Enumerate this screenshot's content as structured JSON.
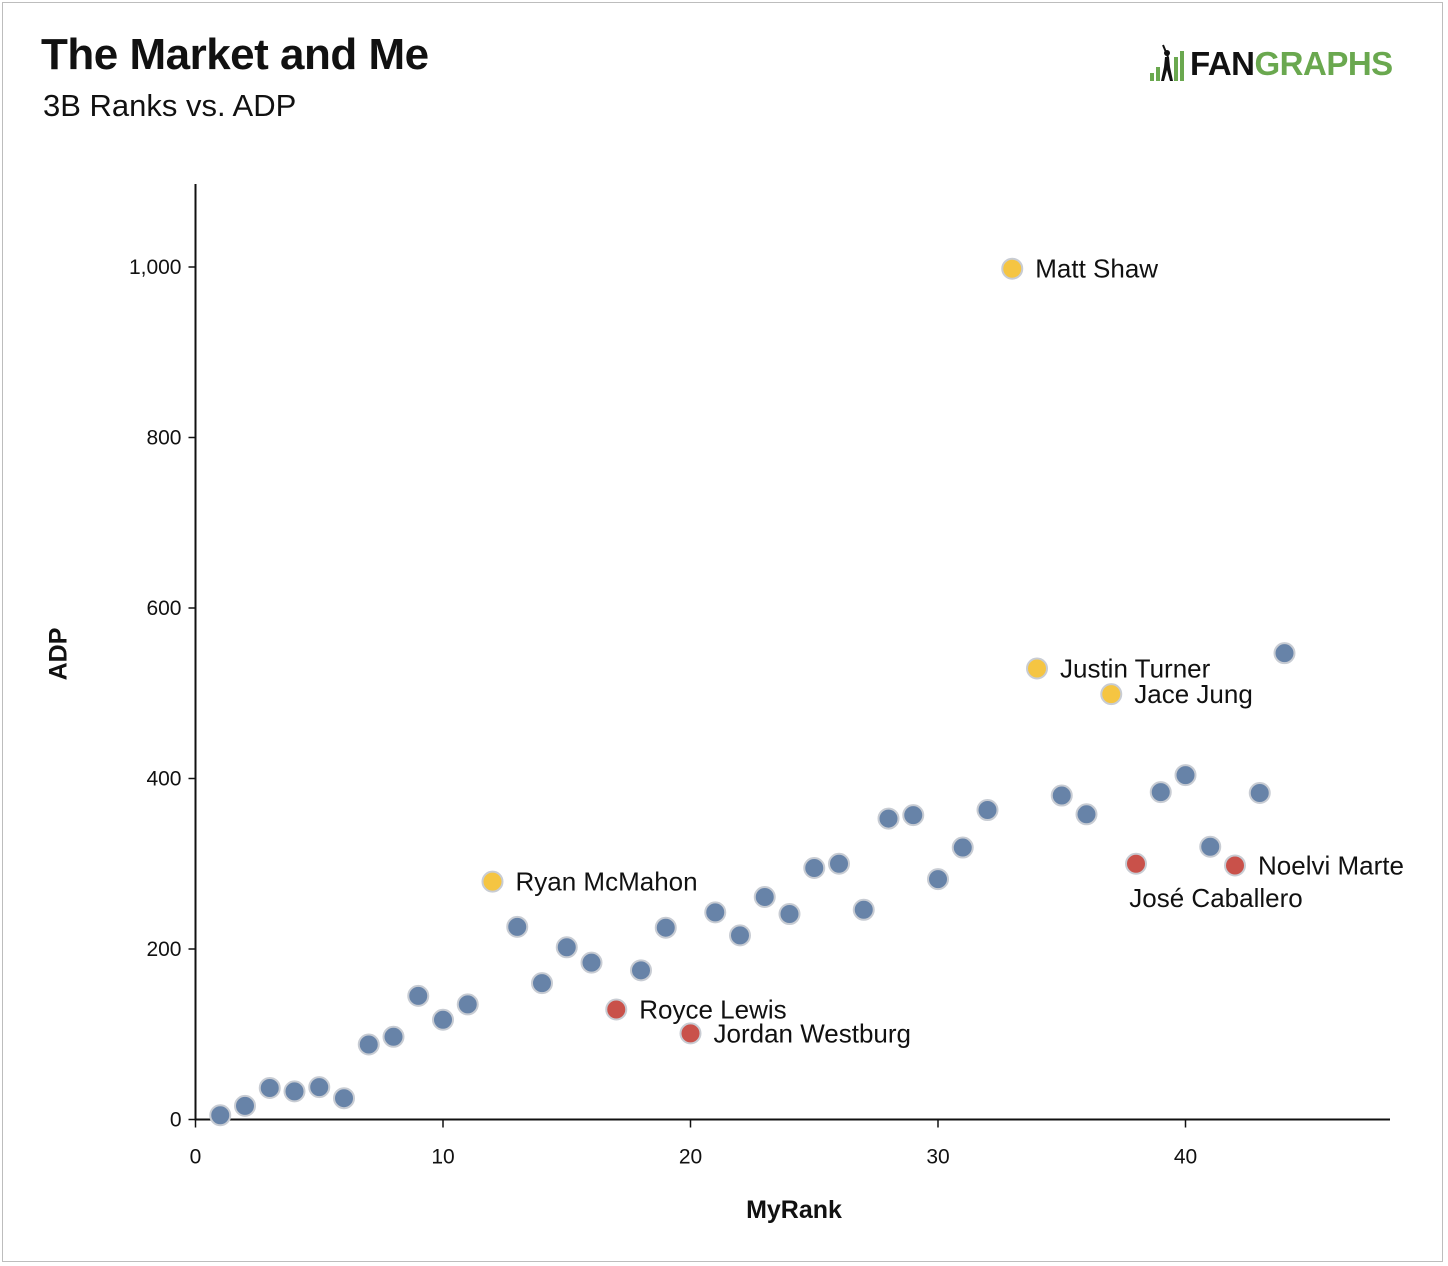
{
  "header": {
    "title": "The Market and Me",
    "subtitle": "3B Ranks vs. ADP",
    "logo_text_1": "FAN",
    "logo_text_2": "GRAPHS"
  },
  "colors": {
    "default": "#6783a8",
    "highlight_up": "#f5c542",
    "highlight_down": "#c9514a",
    "logo_green": "#6aa84f"
  },
  "chart_data": {
    "type": "scatter",
    "xlabel": "MyRank",
    "ylabel": "ADP",
    "xlim": [
      0,
      48
    ],
    "ylim": [
      0,
      1100
    ],
    "xticks": [
      0,
      10,
      20,
      30,
      40
    ],
    "xtick_labels": [
      "0",
      "10",
      "20",
      "30",
      "40"
    ],
    "yticks": [
      0,
      200,
      400,
      600,
      800,
      1000
    ],
    "ytick_labels": [
      "0",
      "200",
      "400",
      "600",
      "800",
      "1,000"
    ],
    "grid": false,
    "points": [
      {
        "x": 1,
        "y": 5,
        "group": "default"
      },
      {
        "x": 2,
        "y": 16,
        "group": "default"
      },
      {
        "x": 3,
        "y": 37,
        "group": "default"
      },
      {
        "x": 4,
        "y": 33,
        "group": "default"
      },
      {
        "x": 5,
        "y": 38,
        "group": "default"
      },
      {
        "x": 6,
        "y": 25,
        "group": "default"
      },
      {
        "x": 7,
        "y": 88,
        "group": "default"
      },
      {
        "x": 8,
        "y": 97,
        "group": "default"
      },
      {
        "x": 9,
        "y": 145,
        "group": "default"
      },
      {
        "x": 10,
        "y": 117,
        "group": "default"
      },
      {
        "x": 11,
        "y": 135,
        "group": "default"
      },
      {
        "x": 12,
        "y": 279,
        "group": "highlight_up",
        "label": "Ryan McMahon",
        "label_pos": "right"
      },
      {
        "x": 13,
        "y": 226,
        "group": "default"
      },
      {
        "x": 14,
        "y": 160,
        "group": "default"
      },
      {
        "x": 15,
        "y": 202,
        "group": "default"
      },
      {
        "x": 16,
        "y": 184,
        "group": "default"
      },
      {
        "x": 17,
        "y": 129,
        "group": "highlight_down",
        "label": "Royce Lewis",
        "label_pos": "right"
      },
      {
        "x": 18,
        "y": 175,
        "group": "default"
      },
      {
        "x": 19,
        "y": 225,
        "group": "default"
      },
      {
        "x": 20,
        "y": 101,
        "group": "highlight_down",
        "label": "Jordan Westburg",
        "label_pos": "right"
      },
      {
        "x": 21,
        "y": 243,
        "group": "default"
      },
      {
        "x": 22,
        "y": 216,
        "group": "default"
      },
      {
        "x": 23,
        "y": 261,
        "group": "default"
      },
      {
        "x": 24,
        "y": 241,
        "group": "default"
      },
      {
        "x": 25,
        "y": 295,
        "group": "default"
      },
      {
        "x": 26,
        "y": 300,
        "group": "default"
      },
      {
        "x": 27,
        "y": 246,
        "group": "default"
      },
      {
        "x": 28,
        "y": 353,
        "group": "default"
      },
      {
        "x": 29,
        "y": 357,
        "group": "default"
      },
      {
        "x": 30,
        "y": 282,
        "group": "default"
      },
      {
        "x": 31,
        "y": 319,
        "group": "default"
      },
      {
        "x": 32,
        "y": 363,
        "group": "default"
      },
      {
        "x": 33,
        "y": 998,
        "group": "highlight_up",
        "label": "Matt Shaw",
        "label_pos": "right"
      },
      {
        "x": 34,
        "y": 529,
        "group": "highlight_up",
        "label": "Justin Turner",
        "label_pos": "right"
      },
      {
        "x": 35,
        "y": 380,
        "group": "default"
      },
      {
        "x": 36,
        "y": 358,
        "group": "default"
      },
      {
        "x": 37,
        "y": 499,
        "group": "highlight_up",
        "label": "Jace Jung",
        "label_pos": "right"
      },
      {
        "x": 38,
        "y": 300,
        "group": "highlight_down",
        "label": "José Caballero",
        "label_pos": "below"
      },
      {
        "x": 39,
        "y": 384,
        "group": "default"
      },
      {
        "x": 40,
        "y": 404,
        "group": "default"
      },
      {
        "x": 41,
        "y": 320,
        "group": "default"
      },
      {
        "x": 42,
        "y": 298,
        "group": "highlight_down",
        "label": "Noelvi Marte",
        "label_pos": "right"
      },
      {
        "x": 43,
        "y": 383,
        "group": "default"
      },
      {
        "x": 44,
        "y": 547,
        "group": "default"
      }
    ]
  }
}
